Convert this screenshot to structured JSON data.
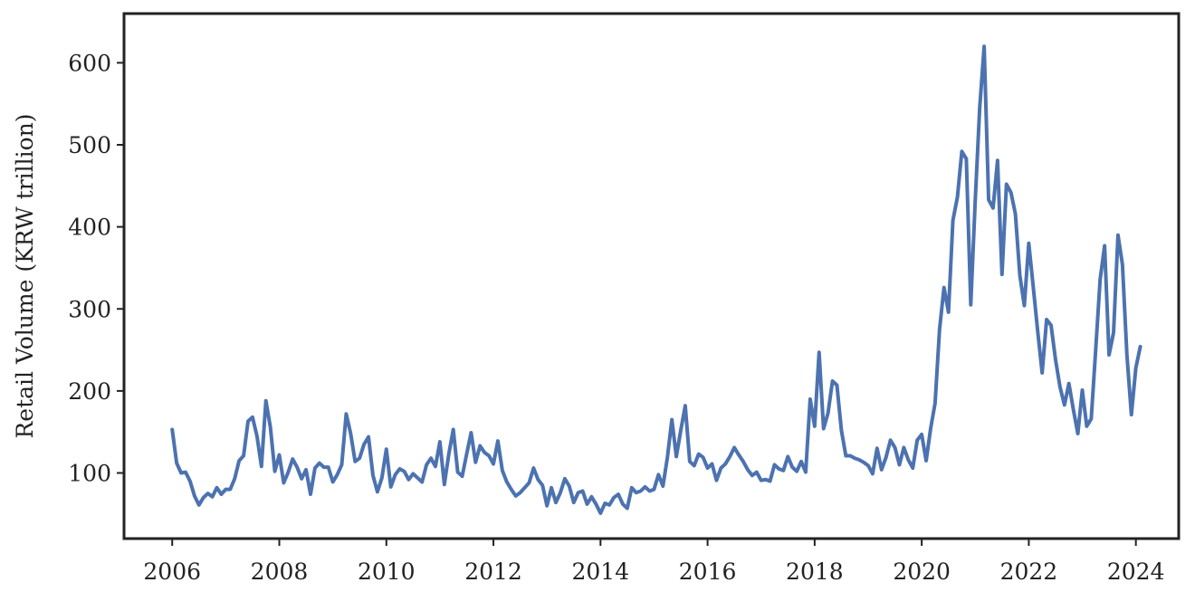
{
  "chart_data": {
    "type": "line",
    "title": "",
    "xlabel": "",
    "ylabel": "Retail Volume (KRW trillion)",
    "xlim": [
      2005.1,
      2024.8
    ],
    "ylim": [
      20,
      660
    ],
    "xticks": [
      2006,
      2008,
      2010,
      2012,
      2014,
      2016,
      2018,
      2020,
      2022,
      2024
    ],
    "xtick_labels": [
      "2006",
      "2008",
      "2010",
      "2012",
      "2014",
      "2016",
      "2018",
      "2020",
      "2022",
      "2024"
    ],
    "yticks": [
      100,
      200,
      300,
      400,
      500,
      600
    ],
    "ytick_labels": [
      "100",
      "200",
      "300",
      "400",
      "500",
      "600"
    ],
    "grid": false,
    "line_color": "#4c72b0",
    "series": [
      {
        "x_start": 2006.0,
        "x_step": 0.08333,
        "values": [
          153,
          112,
          100,
          101,
          90,
          72,
          61,
          70,
          75,
          71,
          82,
          74,
          80,
          80,
          93,
          115,
          121,
          163,
          168,
          145,
          108,
          188,
          156,
          102,
          122,
          88,
          101,
          117,
          107,
          93,
          104,
          74,
          106,
          112,
          107,
          107,
          89,
          98,
          110,
          172,
          148,
          114,
          118,
          135,
          144,
          97,
          77,
          94,
          129,
          83,
          98,
          105,
          102,
          92,
          99,
          94,
          89,
          110,
          118,
          108,
          138,
          86,
          123,
          153,
          101,
          96,
          123,
          149,
          113,
          133,
          125,
          121,
          111,
          139,
          103,
          89,
          80,
          72,
          76,
          82,
          88,
          106,
          92,
          85,
          60,
          82,
          64,
          76,
          93,
          84,
          64,
          76,
          78,
          62,
          71,
          62,
          51,
          63,
          61,
          70,
          74,
          62,
          57,
          82,
          76,
          78,
          83,
          78,
          80,
          98,
          84,
          119,
          165,
          120,
          152,
          182,
          114,
          109,
          123,
          119,
          106,
          111,
          91,
          106,
          111,
          120,
          131,
          122,
          114,
          104,
          97,
          101,
          91,
          92,
          90,
          110,
          105,
          103,
          120,
          107,
          102,
          114,
          101,
          190,
          157,
          247,
          154,
          173,
          212,
          207,
          152,
          121,
          121,
          118,
          116,
          113,
          109,
          99,
          130,
          104,
          119,
          140,
          131,
          110,
          131,
          116,
          106,
          140,
          147,
          115,
          154,
          185,
          275,
          326,
          296,
          408,
          436,
          492,
          483,
          305,
          432,
          545,
          620,
          433,
          423,
          481,
          342,
          452,
          442,
          416,
          341,
          304,
          380,
          327,
          273,
          222,
          287,
          280,
          238,
          205,
          183,
          209,
          177,
          148,
          201,
          157,
          166,
          250,
          336,
          377,
          244,
          271,
          390,
          354,
          244,
          171,
          228,
          254
        ]
      }
    ]
  }
}
